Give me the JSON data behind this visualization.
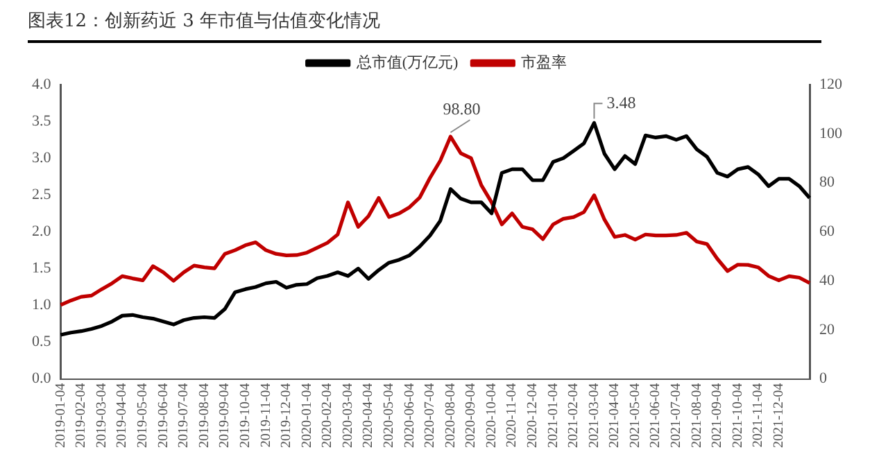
{
  "chart_data": {
    "type": "line",
    "title": "图表12：创新药近 3 年市值与估值变化情况",
    "categories": [
      "2019-01-04",
      null,
      "2019-02-04",
      null,
      "2019-03-04",
      null,
      "2019-04-04",
      null,
      "2019-05-04",
      null,
      "2019-06-04",
      null,
      "2019-07-04",
      null,
      "2019-08-04",
      null,
      "2019-09-04",
      null,
      "2019-10-04",
      null,
      "2019-11-04",
      null,
      "2019-12-04",
      null,
      "2020-01-04",
      null,
      "2020-02-04",
      null,
      "2020-03-04",
      null,
      "2020-04-04",
      null,
      "2020-05-04",
      null,
      "2020-06-04",
      null,
      "2020-07-04",
      null,
      "2020-08-04",
      null,
      "2020-09-04",
      null,
      "2020-10-04",
      null,
      "2020-11-04",
      null,
      "2020-12-04",
      null,
      "2021-01-04",
      null,
      "2021-02-04",
      null,
      "2021-03-04",
      null,
      "2021-04-04",
      null,
      "2021-05-04",
      null,
      "2021-06-04",
      null,
      "2021-07-04",
      null,
      "2021-08-04",
      null,
      "2021-09-04",
      null,
      "2021-10-04",
      null,
      "2021-11-04",
      null,
      "2021-12-04",
      null,
      null,
      null
    ],
    "series": [
      {
        "name": "总市值(万亿元)",
        "color": "#000000",
        "values": [
          0.6,
          0.63,
          0.65,
          0.68,
          0.72,
          0.78,
          0.86,
          0.87,
          0.84,
          0.82,
          0.78,
          0.74,
          0.8,
          0.83,
          0.84,
          0.83,
          0.95,
          1.18,
          1.22,
          1.25,
          1.3,
          1.32,
          1.24,
          1.28,
          1.29,
          1.37,
          1.4,
          1.45,
          1.4,
          1.5,
          1.36,
          1.48,
          1.58,
          1.62,
          1.68,
          1.8,
          1.95,
          2.15,
          2.58,
          2.45,
          2.4,
          2.4,
          2.25,
          2.8,
          2.85,
          2.85,
          2.7,
          2.7,
          2.95,
          3.0,
          3.1,
          3.2,
          3.48,
          3.06,
          2.85,
          3.03,
          2.92,
          3.31,
          3.28,
          3.3,
          3.25,
          3.3,
          3.12,
          3.02,
          2.8,
          2.75,
          2.85,
          2.88,
          2.78,
          2.62,
          2.72,
          2.72,
          2.62,
          2.46
        ]
      },
      {
        "name": "市盈率",
        "color": "#c00000",
        "axis": "y2",
        "values": [
          30.2,
          32,
          33.5,
          34,
          36.6,
          39,
          41.9,
          41,
          40.2,
          46,
          43.5,
          40,
          43.5,
          46.2,
          45.5,
          45.1,
          51,
          52.5,
          54.5,
          55.7,
          52.5,
          51,
          50.4,
          50.5,
          51.5,
          53.5,
          55.5,
          58.9,
          72,
          62,
          66.4,
          73.8,
          66,
          67.5,
          70,
          74,
          82,
          89,
          98.8,
          92,
          90,
          79,
          72,
          63,
          67.5,
          62,
          61,
          57,
          63,
          65.3,
          66,
          68,
          74.9,
          65,
          57.9,
          58.7,
          56.8,
          58.9,
          58.5,
          58.5,
          58.7,
          59.6,
          56,
          55,
          49,
          44,
          46.6,
          46.5,
          45.5,
          42,
          40.2,
          41.9,
          41.3,
          39.1
        ]
      }
    ],
    "ylim": [
      0,
      4
    ],
    "yticks": [
      {
        "value": 0,
        "label": "0.0"
      },
      {
        "value": 0.5,
        "label": "0.5"
      },
      {
        "value": 1,
        "label": "1.0"
      },
      {
        "value": 1.5,
        "label": "1.5"
      },
      {
        "value": 2,
        "label": "2.0"
      },
      {
        "value": 2.5,
        "label": "2.5"
      },
      {
        "value": 3,
        "label": "3.0"
      },
      {
        "value": 3.5,
        "label": "3.5"
      },
      {
        "value": 4,
        "label": "4.0"
      }
    ],
    "y2lim": [
      0,
      120
    ],
    "y2ticks": [
      0,
      20,
      40,
      60,
      80,
      100,
      120
    ],
    "annotations": [
      "98.80",
      {
        "text": "3.48",
        "x": "2021-03-04",
        "y": 3.48
      }
    ],
    "legend": "top",
    "grid": false,
    "marker": "none",
    "line_style": "solid"
  }
}
